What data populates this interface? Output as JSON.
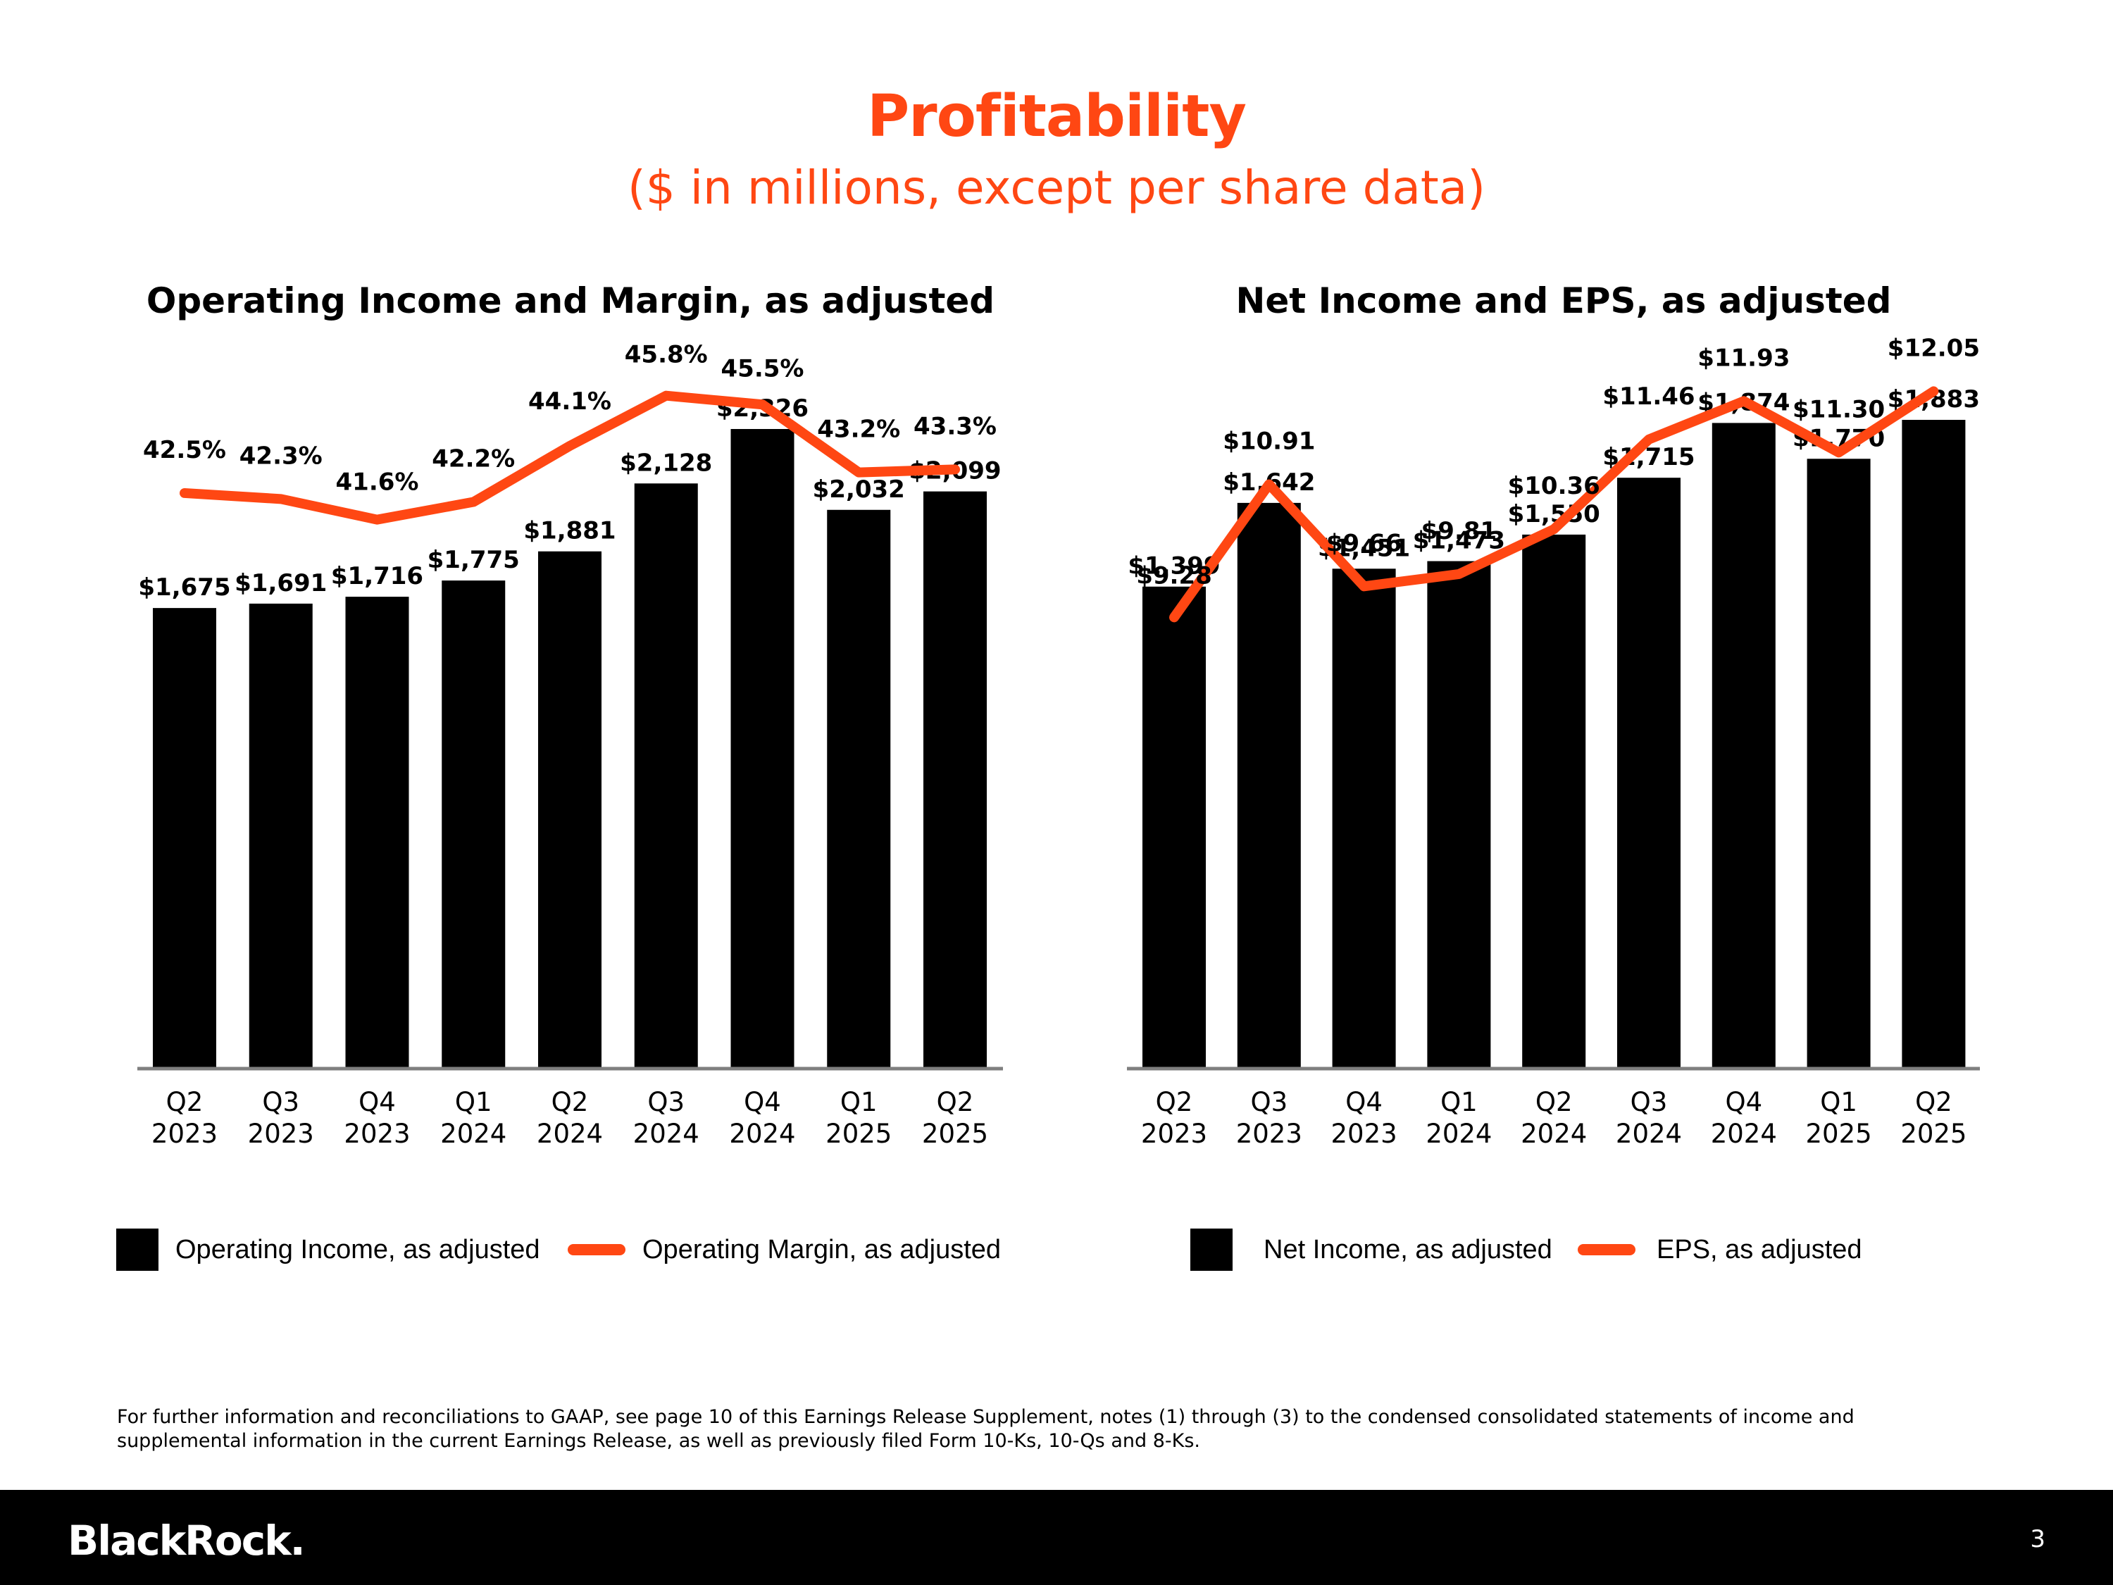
{
  "page": {
    "title": "Profitability",
    "subtitle": "($ in millions, except per share data)"
  },
  "colors": {
    "accent": "#ff4713",
    "bars": "#000000",
    "axis": "#7f7f7f"
  },
  "chart_data": [
    {
      "type": "bar",
      "title": "Operating Income and Margin, as adjusted",
      "categories": [
        [
          "Q2",
          "2023"
        ],
        [
          "Q3",
          "2023"
        ],
        [
          "Q4",
          "2023"
        ],
        [
          "Q1",
          "2024"
        ],
        [
          "Q2",
          "2024"
        ],
        [
          "Q3",
          "2024"
        ],
        [
          "Q4",
          "2024"
        ],
        [
          "Q1",
          "2025"
        ],
        [
          "Q2",
          "2025"
        ]
      ],
      "series": [
        {
          "name": "Operating Income, as adjusted",
          "kind": "bar",
          "unit": "$M",
          "values": [
            1675,
            1691,
            1716,
            1775,
            1881,
            2128,
            2326,
            2032,
            2099
          ],
          "labels": [
            "$1,675",
            "$1,691",
            "$1,716",
            "$1,775",
            "$1,881",
            "$2,128",
            "$2,326",
            "$2,032",
            "$2,099"
          ]
        },
        {
          "name": "Operating Margin, as adjusted",
          "kind": "line",
          "unit": "%",
          "values": [
            42.5,
            42.3,
            41.6,
            42.2,
            44.1,
            45.8,
            45.5,
            43.2,
            43.3
          ],
          "labels": [
            "42.5%",
            "42.3%",
            "41.6%",
            "42.2%",
            "44.1%",
            "45.8%",
            "45.5%",
            "43.2%",
            "43.3%"
          ]
        }
      ],
      "ylim_bar": [
        0,
        3220
      ],
      "ylim_line": [
        23,
        53
      ],
      "legend": [
        "Operating Income, as adjusted",
        "Operating Margin, as adjusted"
      ]
    },
    {
      "type": "bar",
      "title": "Net Income and EPS, as adjusted",
      "categories": [
        [
          "Q2",
          "2023"
        ],
        [
          "Q3",
          "2023"
        ],
        [
          "Q4",
          "2023"
        ],
        [
          "Q1",
          "2024"
        ],
        [
          "Q2",
          "2024"
        ],
        [
          "Q3",
          "2024"
        ],
        [
          "Q4",
          "2024"
        ],
        [
          "Q1",
          "2025"
        ],
        [
          "Q2",
          "2025"
        ]
      ],
      "series": [
        {
          "name": "Net Income, as adjusted",
          "kind": "bar",
          "unit": "$M",
          "values": [
            1399,
            1642,
            1451,
            1473,
            1550,
            1715,
            1874,
            1770,
            1883
          ],
          "labels": [
            "$1,399",
            "$1,642",
            "$1,451",
            "$1,473",
            "$1,550",
            "$1,715",
            "$1,874",
            "$1,770",
            "$1,883"
          ]
        },
        {
          "name": "EPS, as adjusted",
          "kind": "line",
          "unit": "$",
          "values": [
            9.28,
            10.91,
            9.66,
            9.81,
            10.36,
            11.46,
            11.93,
            11.3,
            12.05
          ],
          "labels": [
            "$9.28",
            "$10.91",
            "$9.66",
            "$9.81",
            "$10.36",
            "$11.46",
            "$11.93",
            "$11.30",
            "$12.05"
          ]
        }
      ],
      "ylim_bar": [
        0,
        2570
      ],
      "ylim_line": [
        3.75,
        14.6
      ],
      "legend": [
        "Net Income, as adjusted",
        "EPS, as adjusted"
      ]
    }
  ],
  "footnote": "For further information and reconciliations to GAAP, see page 10 of this Earnings Release Supplement, notes (1) through (3) to the condensed consolidated statements of income and supplemental information in the current Earnings Release, as well as previously filed Form 10-Ks, 10-Qs and 8-Ks.",
  "footer": {
    "logo": "BlackRock.",
    "page_number": "3"
  }
}
